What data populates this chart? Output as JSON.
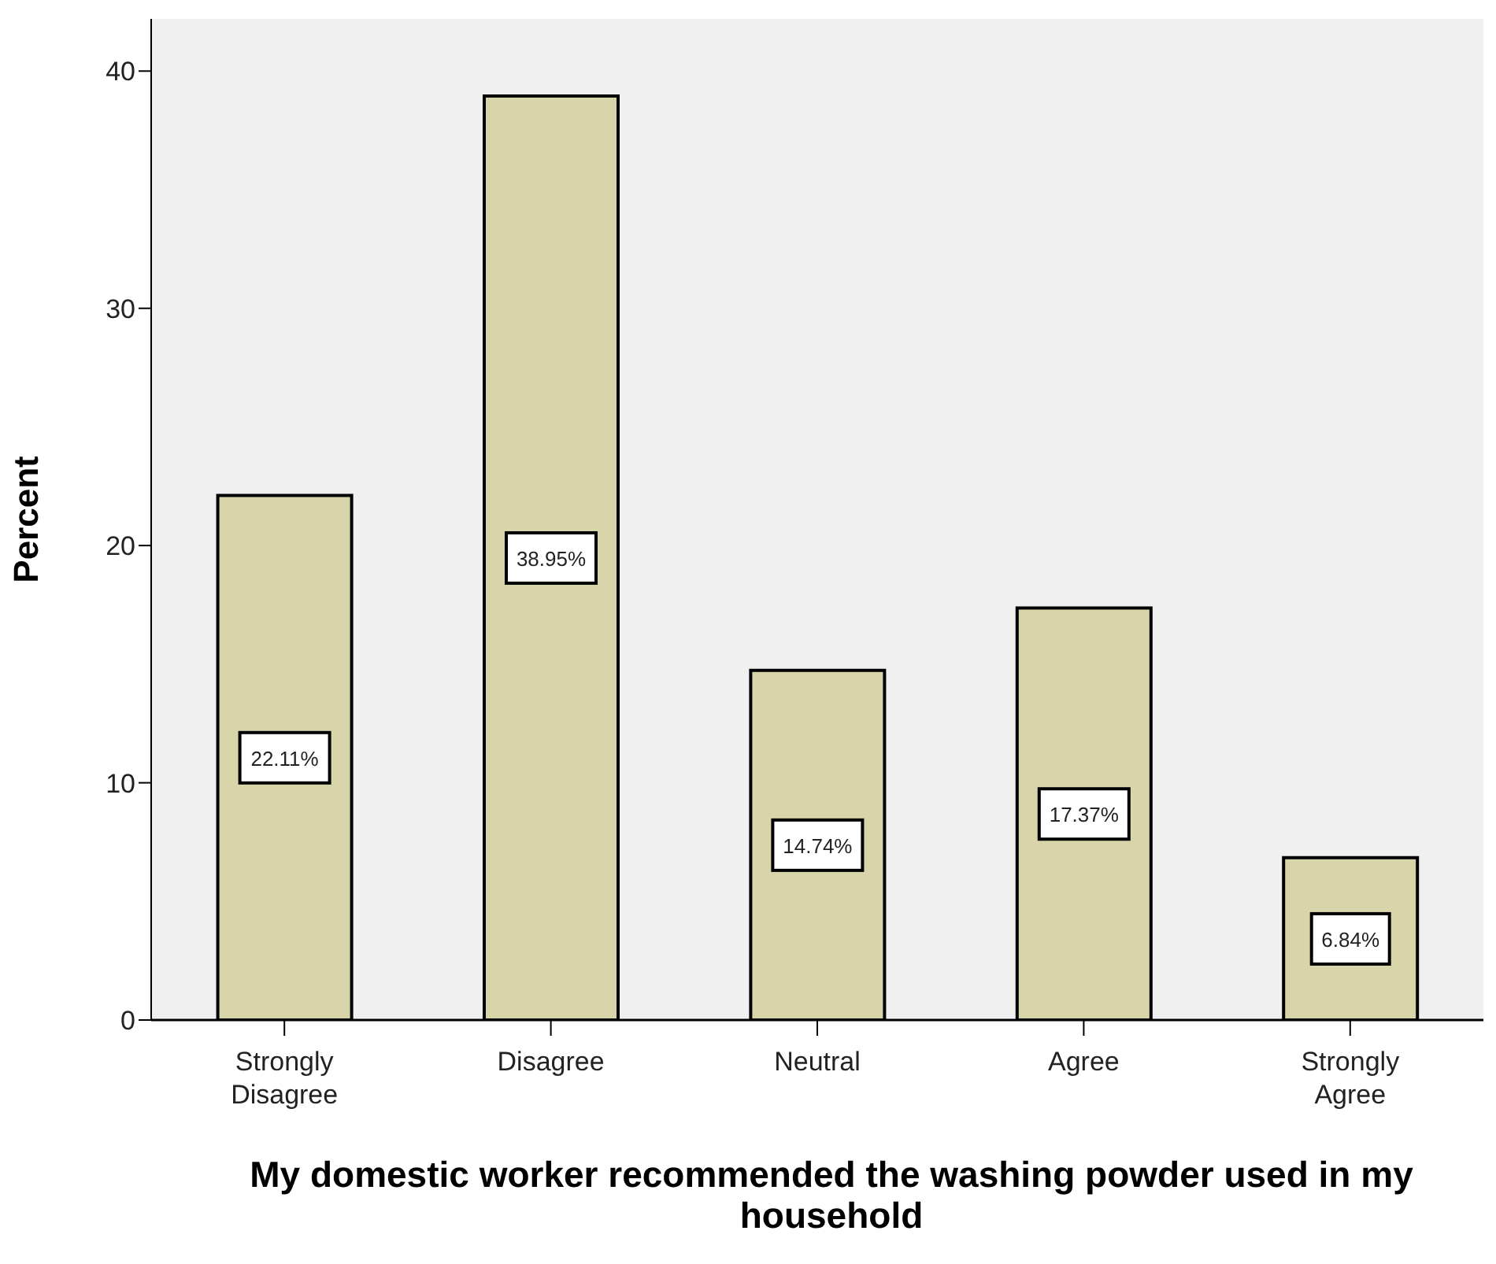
{
  "chart_data": {
    "type": "bar",
    "xlabel": "My domestic worker recommended the washing powder used in my household",
    "ylabel": "Percent",
    "categories": [
      "Strongly Disagree",
      "Disagree",
      "Neutral",
      "Agree",
      "Strongly Agree"
    ],
    "values": [
      22.11,
      38.95,
      14.74,
      17.37,
      6.84
    ],
    "value_labels": [
      "22.11%",
      "38.95%",
      "14.74%",
      "17.37%",
      "6.84%"
    ],
    "color": "#d9d5aa",
    "ylim": [
      0,
      42.2
    ],
    "yticks": [
      0,
      10,
      20,
      30,
      40
    ],
    "grid": false
  }
}
